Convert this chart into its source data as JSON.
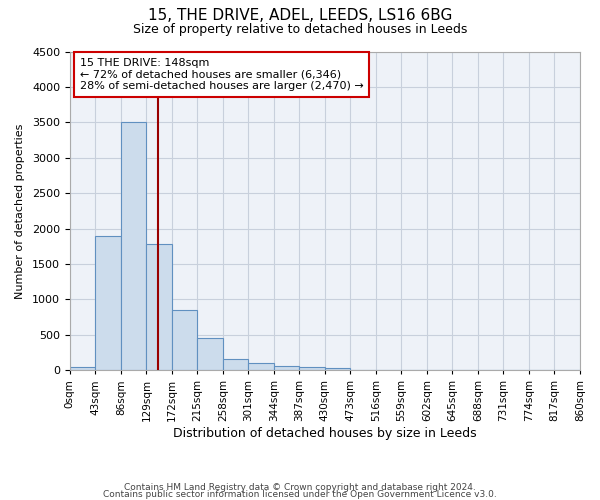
{
  "title1": "15, THE DRIVE, ADEL, LEEDS, LS16 6BG",
  "title2": "Size of property relative to detached houses in Leeds",
  "xlabel": "Distribution of detached houses by size in Leeds",
  "ylabel": "Number of detached properties",
  "bar_values": [
    50,
    1900,
    3500,
    1780,
    850,
    450,
    160,
    100,
    60,
    50,
    30,
    10,
    0,
    0,
    0,
    0,
    0,
    0,
    0,
    0
  ],
  "bin_edges": [
    0,
    43,
    86,
    129,
    172,
    215,
    258,
    301,
    344,
    387,
    430,
    473,
    516,
    559,
    602,
    645,
    688,
    731,
    774,
    817,
    860
  ],
  "bar_color": "#ccdcec",
  "bar_edge_color": "#6090c0",
  "grid_color": "#c8d0dc",
  "background_color": "#eef2f8",
  "vline_x": 148,
  "vline_color": "#990000",
  "annotation_text": "15 THE DRIVE: 148sqm\n← 72% of detached houses are smaller (6,346)\n28% of semi-detached houses are larger (2,470) →",
  "annotation_box_color": "#ffffff",
  "annotation_border_color": "#cc0000",
  "ylim": [
    0,
    4500
  ],
  "yticks": [
    0,
    500,
    1000,
    1500,
    2000,
    2500,
    3000,
    3500,
    4000,
    4500
  ],
  "footer1": "Contains HM Land Registry data © Crown copyright and database right 2024.",
  "footer2": "Contains public sector information licensed under the Open Government Licence v3.0.",
  "title1_fontsize": 11,
  "title2_fontsize": 9,
  "ylabel_fontsize": 8,
  "xlabel_fontsize": 9
}
